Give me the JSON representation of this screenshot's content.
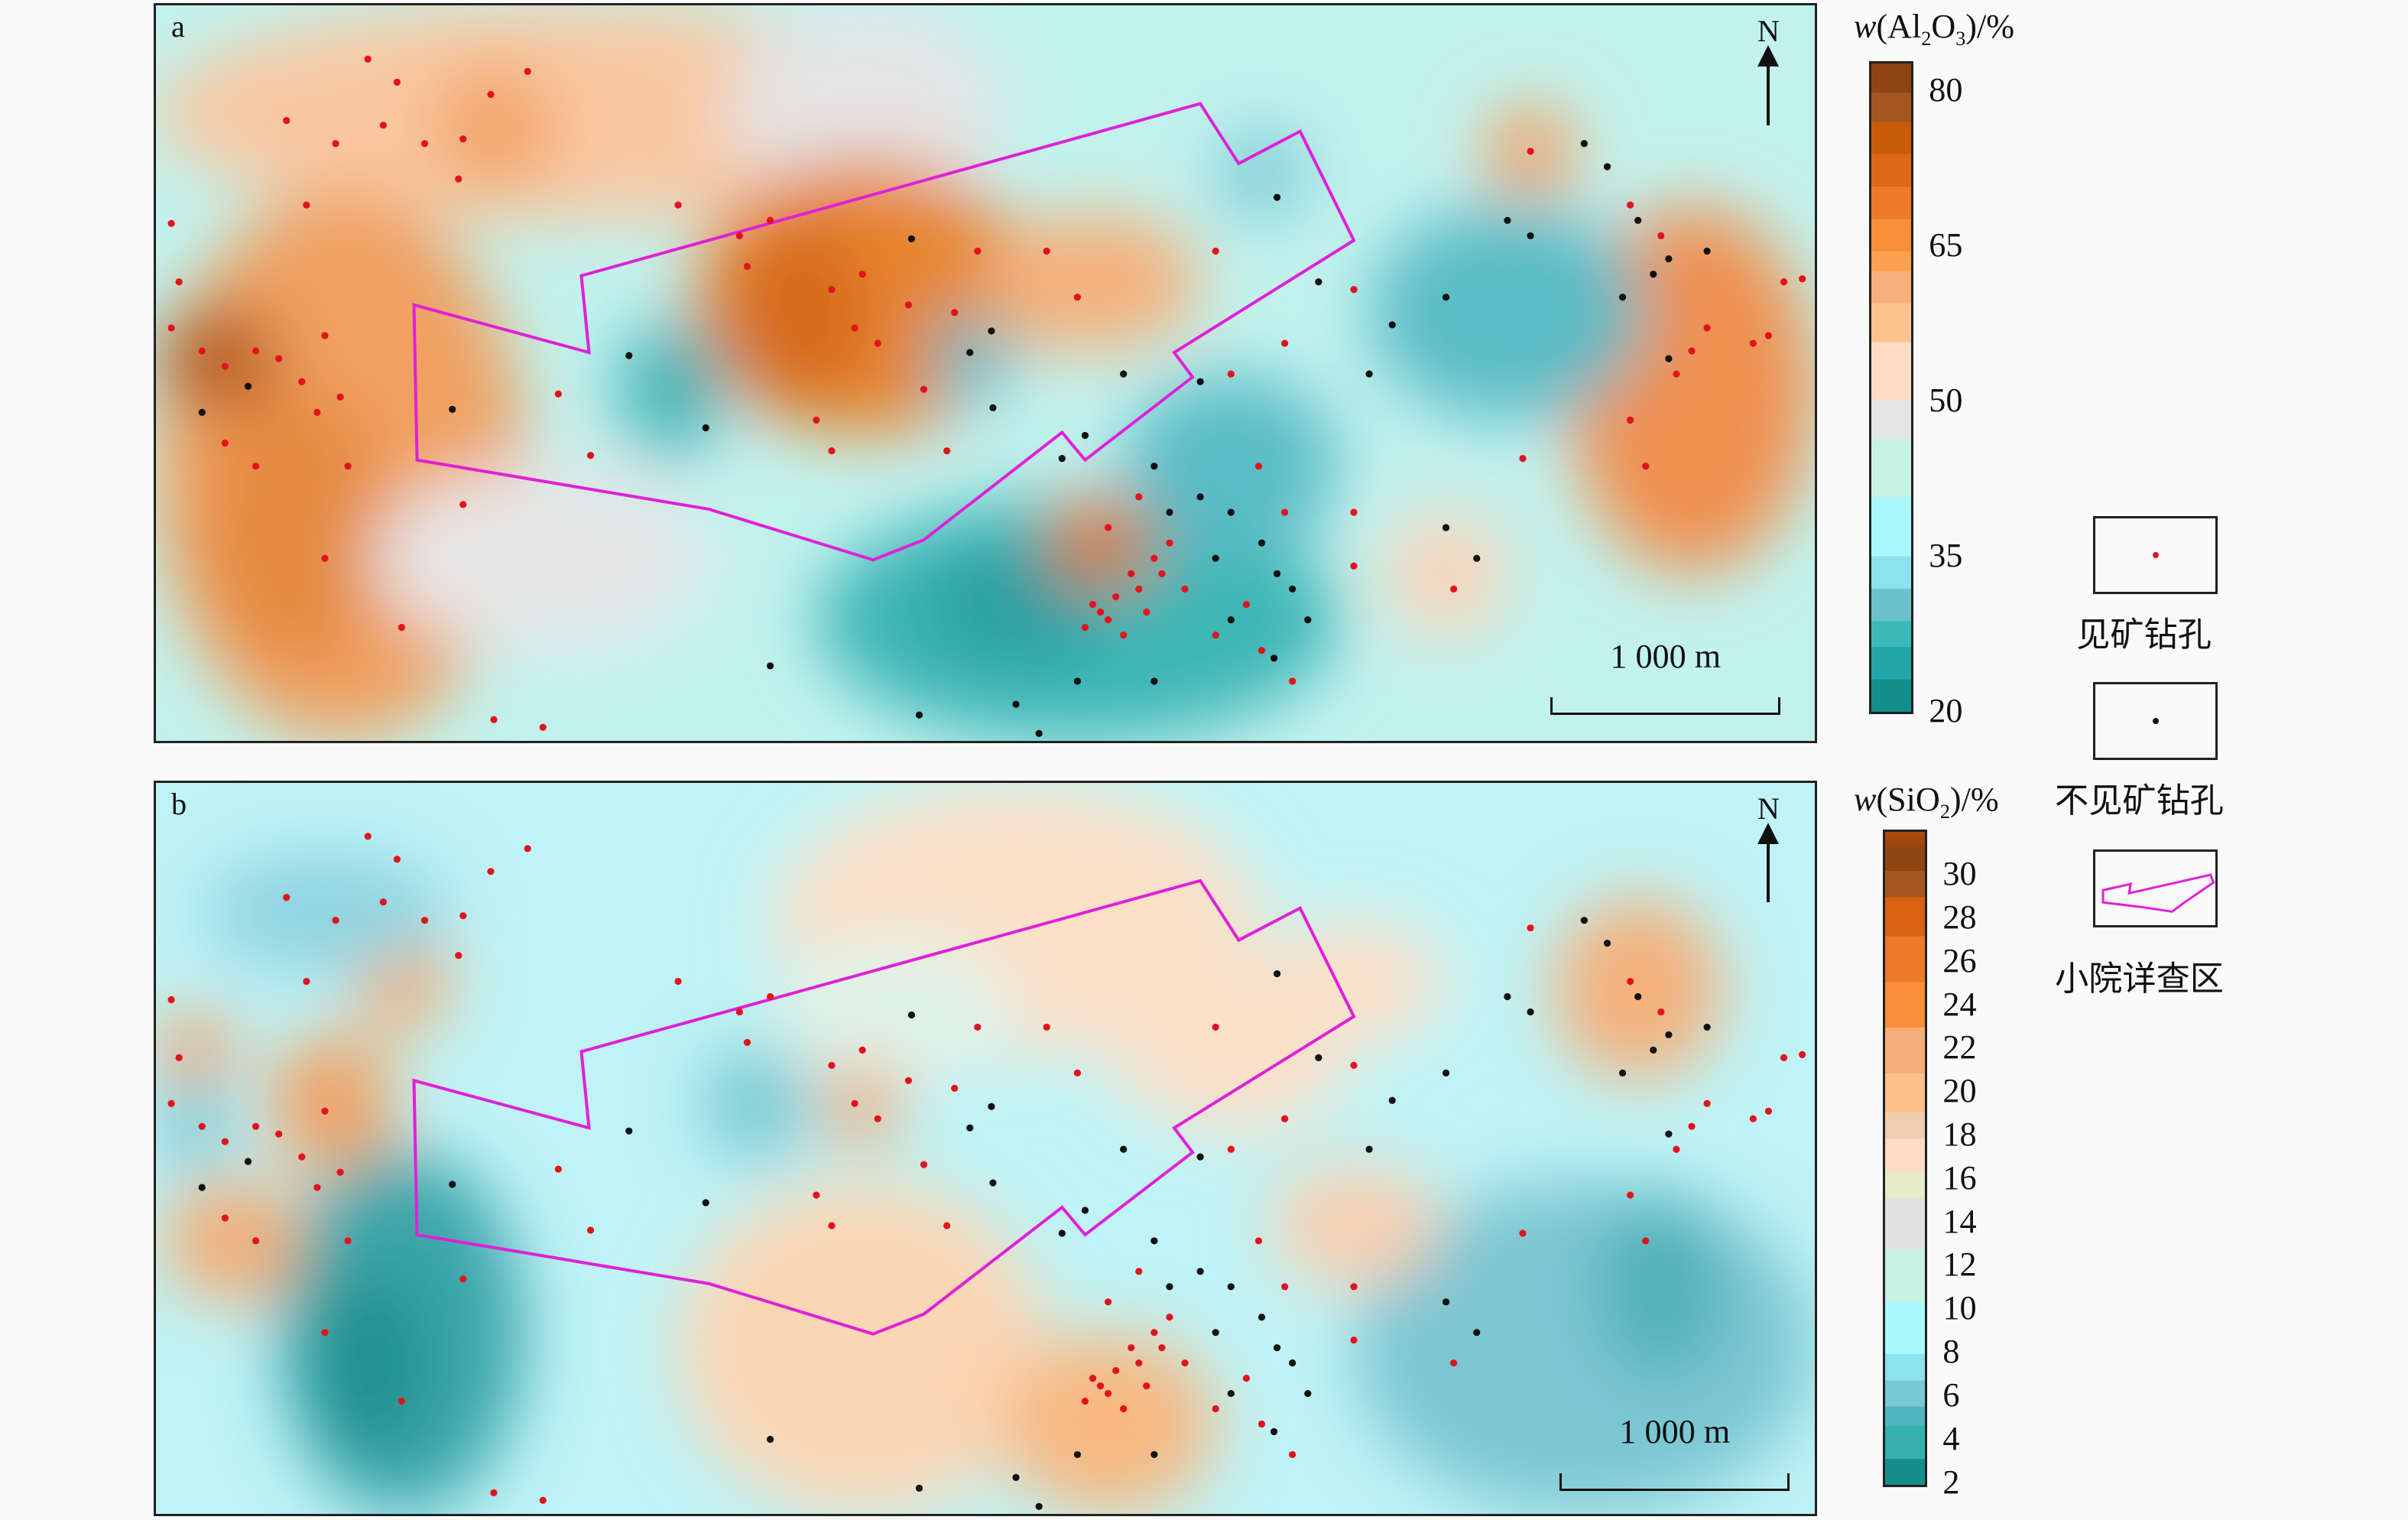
{
  "panel_a": {
    "label": "a",
    "north": "N",
    "scale": "1 000 m",
    "colorbar": {
      "title": {
        "var": "w",
        "open": "(Al",
        "sub1": "2",
        "mid": "O",
        "sub2": "3",
        "close": ")/%"
      },
      "ticks": [
        "80",
        "65",
        "50",
        "35",
        "20"
      ],
      "range": [
        20,
        80
      ]
    }
  },
  "panel_b": {
    "label": "b",
    "north": "N",
    "scale": "1 000 m",
    "colorbar": {
      "title": {
        "var": "w",
        "open": "(SiO",
        "sub1": "2",
        "close": ")/%"
      },
      "ticks": [
        "30",
        "28",
        "26",
        "24",
        "22",
        "20",
        "18",
        "16",
        "14",
        "12",
        "10",
        "8",
        "6",
        "4",
        "2"
      ],
      "range": [
        2,
        30
      ]
    }
  },
  "legend": {
    "ore_hole": "见矿钻孔",
    "no_ore_hole": "不见矿钻孔",
    "survey_area": "小院详查区",
    "ore_color": "#e0141e",
    "no_ore_color": "#111111",
    "boundary_color": "#e020d8"
  }
}
